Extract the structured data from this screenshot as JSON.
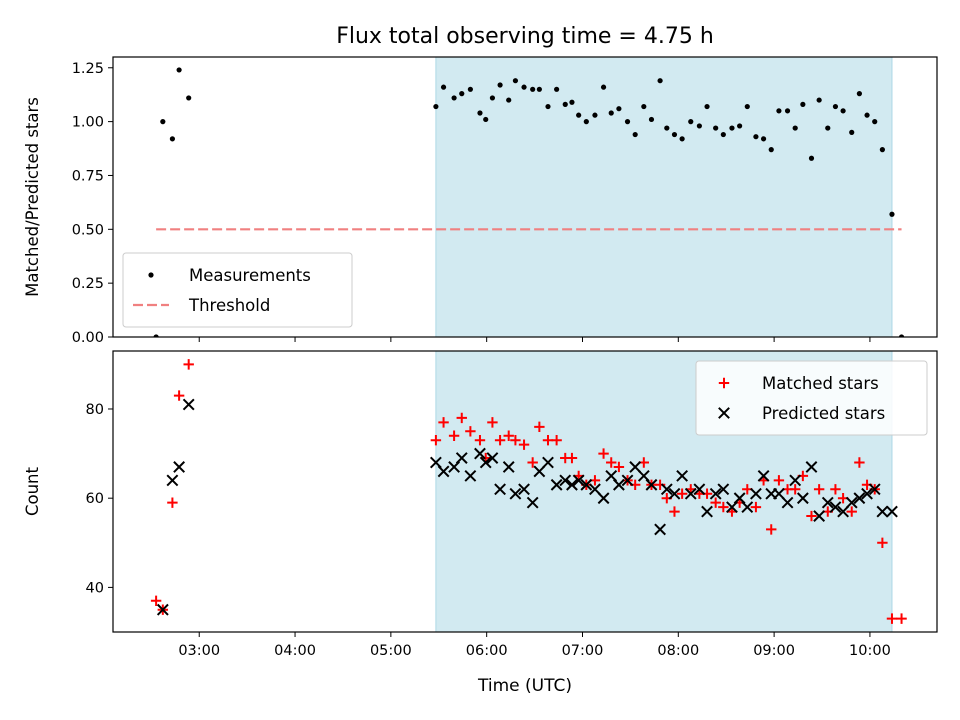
{
  "chart_data": {
    "title": "Flux total observing time = 4.75 h",
    "xlabel": "Time (UTC)",
    "x_unit": "hours UTC",
    "xlim": [
      2.1,
      10.7
    ],
    "xticks": [
      {
        "v": 3,
        "label": "03:00"
      },
      {
        "v": 4,
        "label": "04:00"
      },
      {
        "v": 5,
        "label": "05:00"
      },
      {
        "v": 6,
        "label": "06:00"
      },
      {
        "v": 7,
        "label": "07:00"
      },
      {
        "v": 8,
        "label": "08:00"
      },
      {
        "v": 9,
        "label": "09:00"
      },
      {
        "v": 10,
        "label": "10:00"
      }
    ],
    "shaded_span": {
      "from": 5.47,
      "to": 10.23,
      "color": "#add8e6"
    },
    "colors": {
      "measurements": "#000000",
      "threshold": "#f08080",
      "matched": "#ff0000",
      "predicted": "#000000",
      "span": "#add8e6"
    },
    "panels": [
      {
        "type": "scatter",
        "ylabel": "Matched/Predicted stars",
        "ylim": [
          0,
          1.3
        ],
        "yticks": [
          {
            "v": 0,
            "label": "0.00"
          },
          {
            "v": 0.25,
            "label": "0.25"
          },
          {
            "v": 0.5,
            "label": "0.50"
          },
          {
            "v": 0.75,
            "label": "0.75"
          },
          {
            "v": 1.0,
            "label": "1.00"
          },
          {
            "v": 1.25,
            "label": "1.25"
          }
        ],
        "legend_position": "bottom-left",
        "series": [
          {
            "name": "Measurements",
            "marker": "dot",
            "points": [
              [
                2.55,
                0.0
              ],
              [
                2.62,
                1.0
              ],
              [
                2.72,
                0.92
              ],
              [
                2.79,
                1.24
              ],
              [
                2.89,
                1.11
              ],
              [
                5.47,
                1.07
              ],
              [
                5.55,
                1.16
              ],
              [
                5.66,
                1.11
              ],
              [
                5.74,
                1.13
              ],
              [
                5.83,
                1.15
              ],
              [
                5.93,
                1.04
              ],
              [
                5.99,
                1.01
              ],
              [
                6.06,
                1.11
              ],
              [
                6.14,
                1.17
              ],
              [
                6.23,
                1.1
              ],
              [
                6.3,
                1.19
              ],
              [
                6.39,
                1.16
              ],
              [
                6.48,
                1.15
              ],
              [
                6.55,
                1.15
              ],
              [
                6.64,
                1.07
              ],
              [
                6.73,
                1.15
              ],
              [
                6.82,
                1.08
              ],
              [
                6.89,
                1.09
              ],
              [
                6.96,
                1.03
              ],
              [
                7.04,
                1.0
              ],
              [
                7.13,
                1.03
              ],
              [
                7.22,
                1.16
              ],
              [
                7.3,
                1.04
              ],
              [
                7.38,
                1.06
              ],
              [
                7.47,
                1.0
              ],
              [
                7.55,
                0.94
              ],
              [
                7.64,
                1.07
              ],
              [
                7.72,
                1.01
              ],
              [
                7.81,
                1.19
              ],
              [
                7.88,
                0.97
              ],
              [
                7.96,
                0.94
              ],
              [
                8.04,
                0.92
              ],
              [
                8.13,
                1.0
              ],
              [
                8.22,
                0.98
              ],
              [
                8.3,
                1.07
              ],
              [
                8.39,
                0.97
              ],
              [
                8.47,
                0.94
              ],
              [
                8.56,
                0.97
              ],
              [
                8.64,
                0.98
              ],
              [
                8.72,
                1.07
              ],
              [
                8.81,
                0.93
              ],
              [
                8.89,
                0.92
              ],
              [
                8.97,
                0.87
              ],
              [
                9.05,
                1.05
              ],
              [
                9.14,
                1.05
              ],
              [
                9.22,
                0.97
              ],
              [
                9.3,
                1.08
              ],
              [
                9.39,
                0.83
              ],
              [
                9.47,
                1.1
              ],
              [
                9.56,
                0.97
              ],
              [
                9.64,
                1.07
              ],
              [
                9.72,
                1.05
              ],
              [
                9.81,
                0.95
              ],
              [
                9.89,
                1.13
              ],
              [
                9.97,
                1.03
              ],
              [
                10.05,
                1.0
              ],
              [
                10.13,
                0.87
              ],
              [
                10.23,
                0.57
              ],
              [
                10.33,
                0.0
              ]
            ]
          },
          {
            "name": "Threshold",
            "marker": "dashed-line",
            "points": [
              [
                2.55,
                0.5
              ],
              [
                10.33,
                0.5
              ]
            ]
          }
        ]
      },
      {
        "type": "scatter",
        "ylabel": "Count",
        "ylim": [
          30,
          93
        ],
        "yticks": [
          {
            "v": 40,
            "label": "40"
          },
          {
            "v": 60,
            "label": "60"
          },
          {
            "v": 80,
            "label": "80"
          }
        ],
        "legend_position": "top-right",
        "series": [
          {
            "name": "Matched stars",
            "marker": "plus",
            "points": [
              [
                2.55,
                37
              ],
              [
                2.62,
                35
              ],
              [
                2.72,
                59
              ],
              [
                2.79,
                83
              ],
              [
                2.89,
                90
              ],
              [
                5.47,
                73
              ],
              [
                5.55,
                77
              ],
              [
                5.66,
                74
              ],
              [
                5.74,
                78
              ],
              [
                5.83,
                75
              ],
              [
                5.93,
                73
              ],
              [
                5.99,
                69
              ],
              [
                6.06,
                77
              ],
              [
                6.14,
                73
              ],
              [
                6.23,
                74
              ],
              [
                6.3,
                73
              ],
              [
                6.39,
                72
              ],
              [
                6.48,
                68
              ],
              [
                6.55,
                76
              ],
              [
                6.64,
                73
              ],
              [
                6.73,
                73
              ],
              [
                6.82,
                69
              ],
              [
                6.89,
                69
              ],
              [
                6.96,
                65
              ],
              [
                7.04,
                63
              ],
              [
                7.13,
                64
              ],
              [
                7.22,
                70
              ],
              [
                7.3,
                68
              ],
              [
                7.38,
                67
              ],
              [
                7.47,
                64
              ],
              [
                7.55,
                63
              ],
              [
                7.64,
                68
              ],
              [
                7.72,
                63
              ],
              [
                7.81,
                63
              ],
              [
                7.88,
                60
              ],
              [
                7.96,
                57
              ],
              [
                8.04,
                61
              ],
              [
                8.13,
                62
              ],
              [
                8.22,
                61
              ],
              [
                8.3,
                61
              ],
              [
                8.39,
                59
              ],
              [
                8.47,
                58
              ],
              [
                8.56,
                57
              ],
              [
                8.64,
                59
              ],
              [
                8.72,
                62
              ],
              [
                8.81,
                58
              ],
              [
                8.89,
                64
              ],
              [
                8.97,
                53
              ],
              [
                9.05,
                64
              ],
              [
                9.14,
                62
              ],
              [
                9.22,
                62
              ],
              [
                9.3,
                65
              ],
              [
                9.39,
                56
              ],
              [
                9.47,
                62
              ],
              [
                9.56,
                57
              ],
              [
                9.64,
                62
              ],
              [
                9.72,
                60
              ],
              [
                9.81,
                57
              ],
              [
                9.89,
                68
              ],
              [
                9.97,
                63
              ],
              [
                10.05,
                62
              ],
              [
                10.13,
                50
              ],
              [
                10.23,
                33
              ],
              [
                10.33,
                33
              ]
            ]
          },
          {
            "name": "Predicted stars",
            "marker": "x",
            "points": [
              [
                2.62,
                35
              ],
              [
                2.72,
                64
              ],
              [
                2.79,
                67
              ],
              [
                2.89,
                81
              ],
              [
                5.47,
                68
              ],
              [
                5.55,
                66
              ],
              [
                5.66,
                67
              ],
              [
                5.74,
                69
              ],
              [
                5.83,
                65
              ],
              [
                5.93,
                70
              ],
              [
                5.99,
                68
              ],
              [
                6.06,
                69
              ],
              [
                6.14,
                62
              ],
              [
                6.23,
                67
              ],
              [
                6.3,
                61
              ],
              [
                6.39,
                62
              ],
              [
                6.48,
                59
              ],
              [
                6.55,
                66
              ],
              [
                6.64,
                68
              ],
              [
                6.73,
                63
              ],
              [
                6.82,
                64
              ],
              [
                6.89,
                63
              ],
              [
                6.96,
                64
              ],
              [
                7.04,
                63
              ],
              [
                7.13,
                62
              ],
              [
                7.22,
                60
              ],
              [
                7.3,
                65
              ],
              [
                7.38,
                63
              ],
              [
                7.47,
                64
              ],
              [
                7.55,
                67
              ],
              [
                7.64,
                65
              ],
              [
                7.72,
                63
              ],
              [
                7.81,
                53
              ],
              [
                7.88,
                62
              ],
              [
                7.96,
                61
              ],
              [
                8.04,
                65
              ],
              [
                8.13,
                61
              ],
              [
                8.22,
                62
              ],
              [
                8.3,
                57
              ],
              [
                8.39,
                61
              ],
              [
                8.47,
                62
              ],
              [
                8.56,
                58
              ],
              [
                8.64,
                60
              ],
              [
                8.72,
                58
              ],
              [
                8.81,
                61
              ],
              [
                8.89,
                65
              ],
              [
                8.97,
                61
              ],
              [
                9.05,
                61
              ],
              [
                9.14,
                59
              ],
              [
                9.22,
                64
              ],
              [
                9.3,
                60
              ],
              [
                9.39,
                67
              ],
              [
                9.47,
                56
              ],
              [
                9.56,
                59
              ],
              [
                9.64,
                58
              ],
              [
                9.72,
                57
              ],
              [
                9.81,
                59
              ],
              [
                9.89,
                60
              ],
              [
                9.97,
                61
              ],
              [
                10.05,
                62
              ],
              [
                10.13,
                57
              ],
              [
                10.23,
                57
              ]
            ]
          }
        ]
      }
    ]
  }
}
